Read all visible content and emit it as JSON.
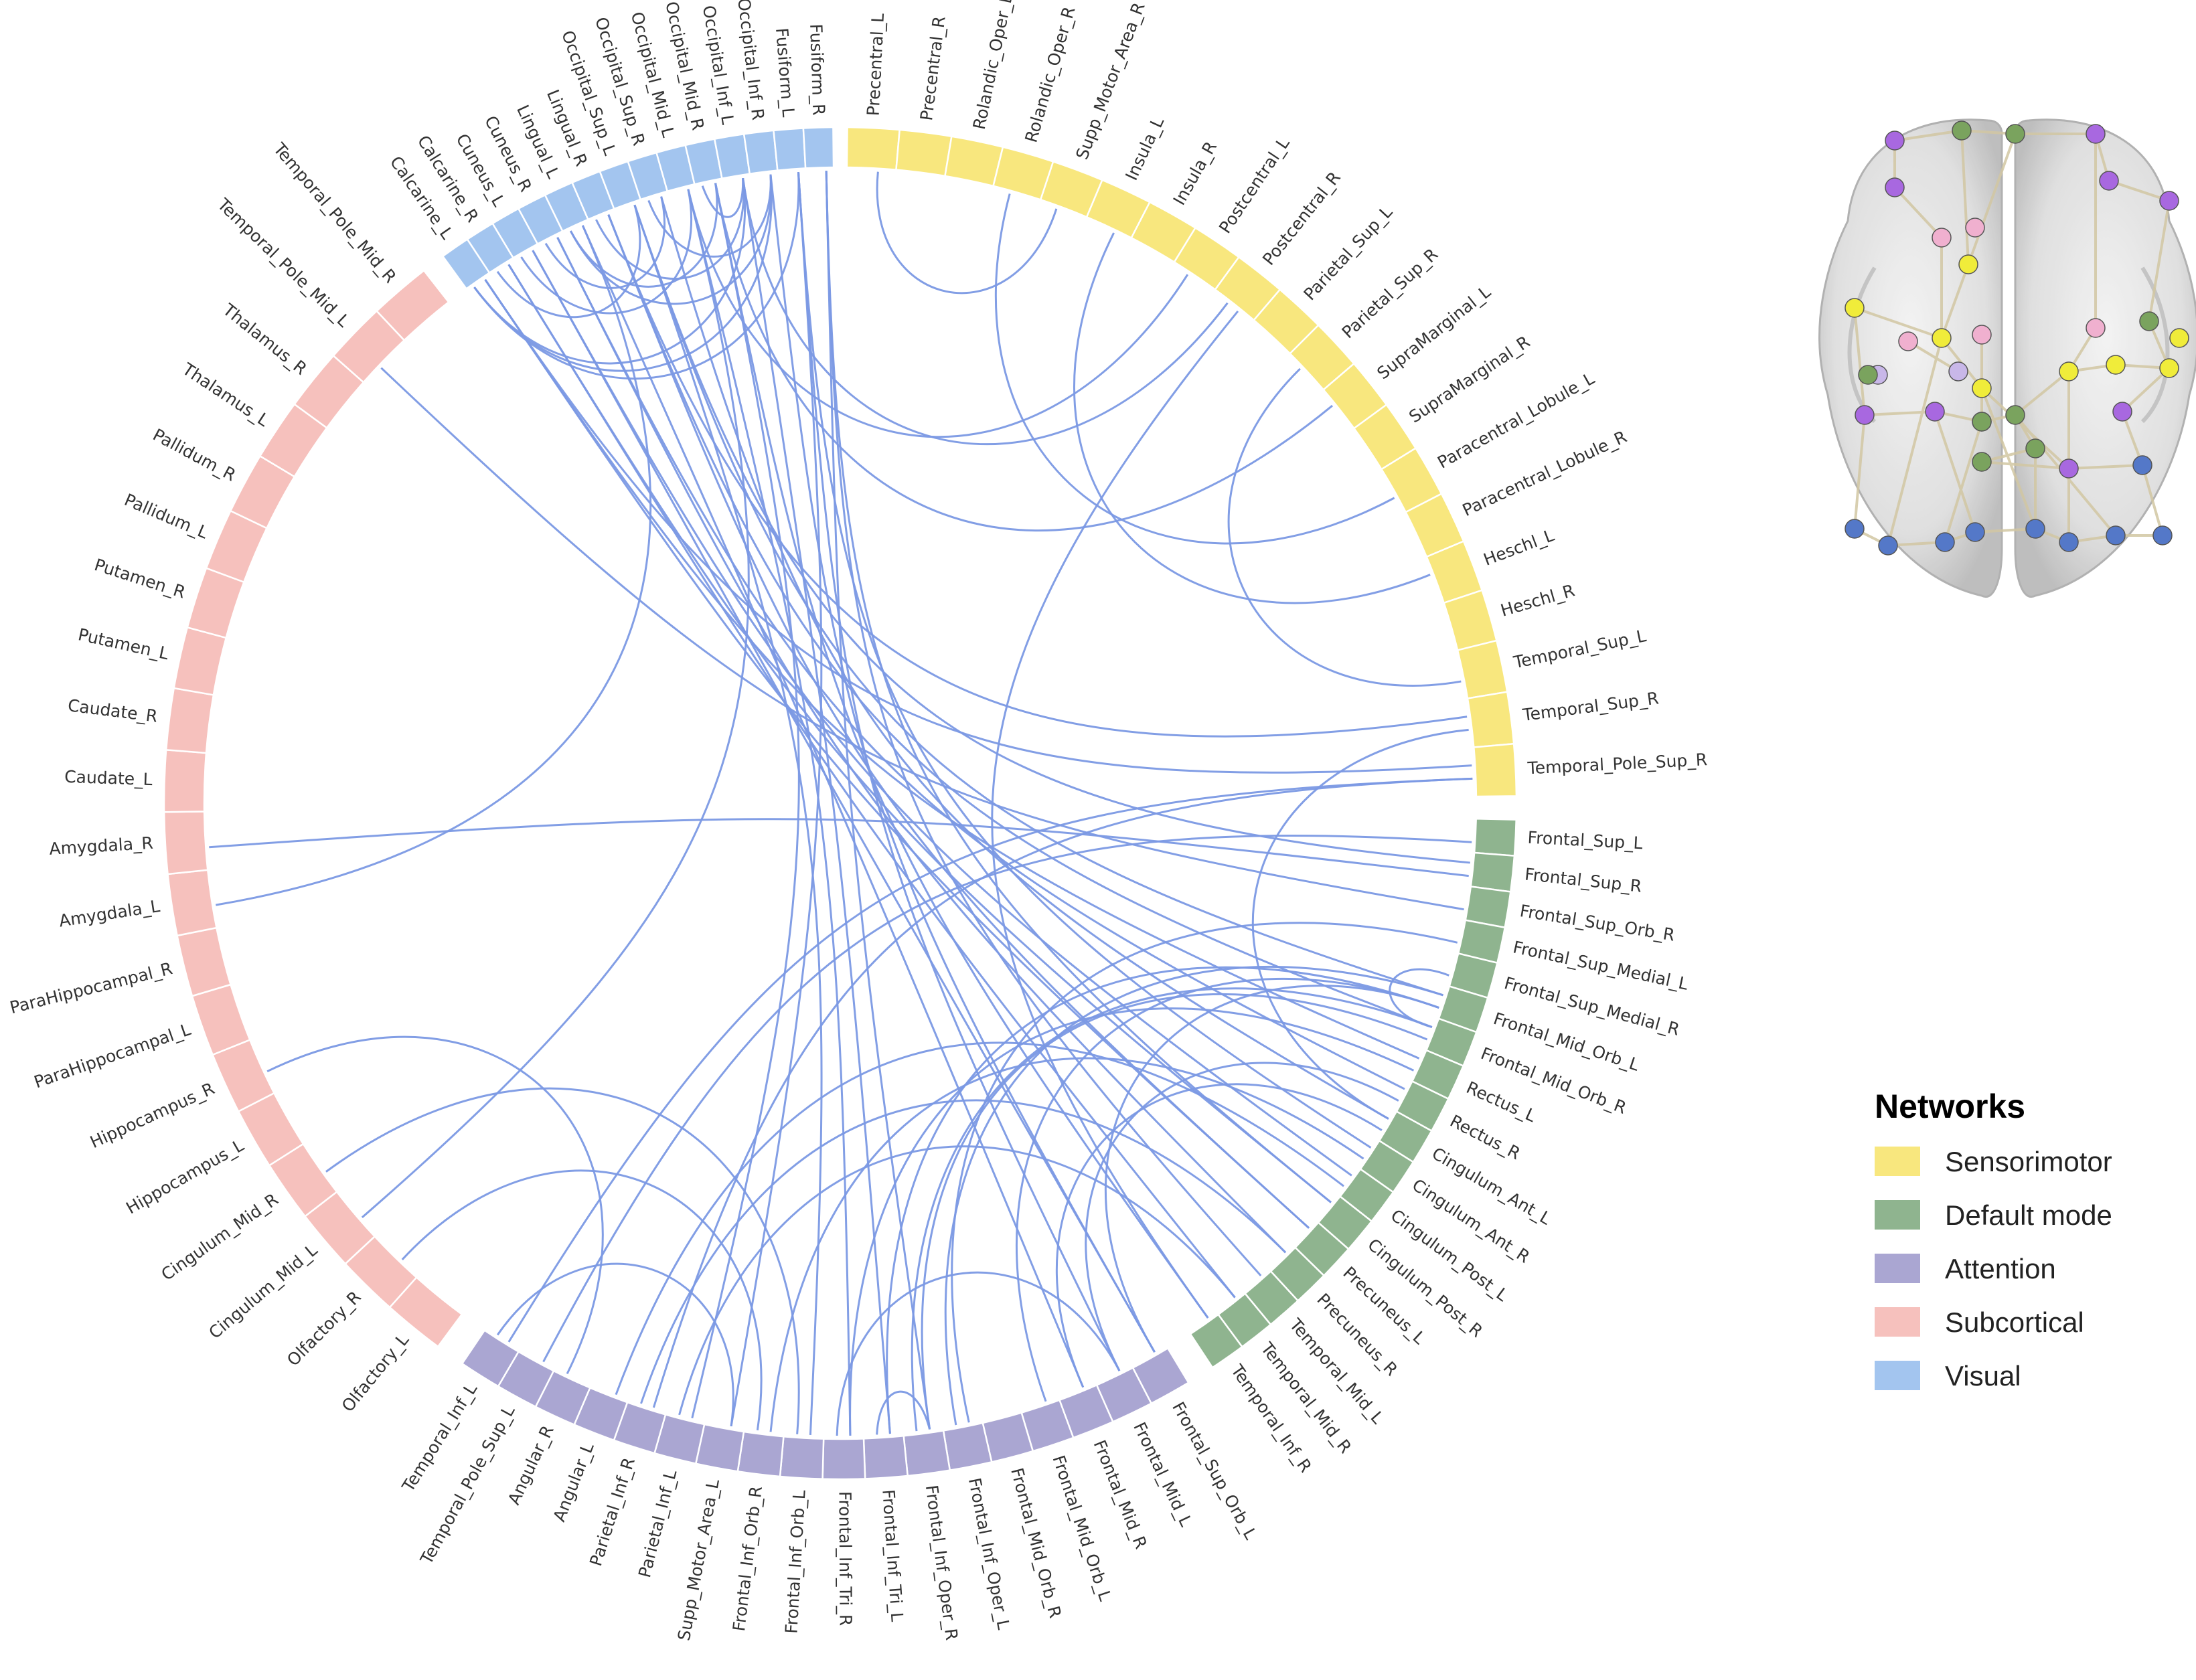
{
  "figure": "chord-diagram",
  "legend": {
    "title": "Networks",
    "items": [
      {
        "name": "Sensorimotor",
        "color": "#f8e77e"
      },
      {
        "name": "Default mode",
        "color": "#8fb48f"
      },
      {
        "name": "Attention",
        "color": "#aaa6d2"
      },
      {
        "name": "Subcortical",
        "color": "#f6c1bd"
      },
      {
        "name": "Visual",
        "color": "#a3c5ef"
      }
    ]
  },
  "groups": [
    {
      "network": "Sensorimotor",
      "color": "#f8e77e",
      "regions": [
        "Precentral_L",
        "Precentral_R",
        "Rolandic_Oper_L",
        "Rolandic_Oper_R",
        "Supp_Motor_Area_R",
        "Insula_L",
        "Insula_R",
        "Postcentral_L",
        "Postcentral_R",
        "Parietal_Sup_L",
        "Parietal_Sup_R",
        "SupraMarginal_L",
        "SupraMarginal_R",
        "Paracentral_Lobule_L",
        "Paracentral_Lobule_R",
        "Heschl_L",
        "Heschl_R",
        "Temporal_Sup_L",
        "Temporal_Sup_R",
        "Temporal_Pole_Sup_R"
      ]
    },
    {
      "network": "Default mode",
      "color": "#8fb48f",
      "regions": [
        "Frontal_Sup_L",
        "Frontal_Sup_R",
        "Frontal_Sup_Orb_R",
        "Frontal_Sup_Medial_L",
        "Frontal_Sup_Medial_R",
        "Frontal_Mid_Orb_L",
        "Frontal_Mid_Orb_R",
        "Rectus_L",
        "Rectus_R",
        "Cingulum_Ant_L",
        "Cingulum_Ant_R",
        "Cingulum_Post_L",
        "Cingulum_Post_R",
        "Precuneus_L",
        "Precuneus_R",
        "Temporal_Mid_L",
        "Temporal_Mid_R",
        "Temporal_Inf_R"
      ]
    },
    {
      "network": "Attention",
      "color": "#aaa6d2",
      "regions": [
        "Frontal_Sup_Orb_L",
        "Frontal_Mid_L",
        "Frontal_Mid_R",
        "Frontal_Mid_Orb_L",
        "Frontal_Mid_Orb_R",
        "Frontal_Inf_Oper_L",
        "Frontal_Inf_Oper_R",
        "Frontal_Inf_Tri_L",
        "Frontal_Inf_Tri_R",
        "Frontal_Inf_Orb_L",
        "Frontal_Inf_Orb_R",
        "Supp_Motor_Area_L",
        "Parietal_Inf_L",
        "Parietal_Inf_R",
        "Angular_L",
        "Angular_R",
        "Temporal_Pole_Sup_L",
        "Temporal_Inf_L"
      ]
    },
    {
      "network": "Subcortical",
      "color": "#f6c1bd",
      "regions": [
        "Olfactory_L",
        "Olfactory_R",
        "Cingulum_Mid_L",
        "Cingulum_Mid_R",
        "Hippocampus_L",
        "Hippocampus_R",
        "ParaHippocampal_L",
        "ParaHippocampal_R",
        "Amygdala_L",
        "Amygdala_R",
        "Caudate_L",
        "Caudate_R",
        "Putamen_L",
        "Putamen_R",
        "Pallidum_L",
        "Pallidum_R",
        "Thalamus_L",
        "Thalamus_R",
        "Temporal_Pole_Mid_L",
        "Temporal_Pole_Mid_R"
      ]
    },
    {
      "network": "Visual",
      "color": "#a3c5ef",
      "regions": [
        "Calcarine_L",
        "Calcarine_R",
        "Cuneus_L",
        "Cuneus_R",
        "Lingual_L",
        "Lingual_R",
        "Occipital_Sup_L",
        "Occipital_Sup_R",
        "Occipital_Mid_L",
        "Occipital_Mid_R",
        "Occipital_Inf_L",
        "Occipital_Inf_R",
        "Fusiform_L",
        "Fusiform_R"
      ]
    }
  ],
  "links": [
    [
      "Fusiform_R",
      "Frontal_Inf_Oper_R"
    ],
    [
      "Fusiform_R",
      "Cingulum_Post_R"
    ],
    [
      "Fusiform_R",
      "Temporal_Mid_L"
    ],
    [
      "Fusiform_L",
      "Frontal_Mid_L"
    ],
    [
      "Fusiform_L",
      "Cingulum_Ant_R"
    ],
    [
      "Fusiform_L",
      "Supp_Motor_Area_L"
    ],
    [
      "Fusiform_L",
      "Calcarine_L"
    ],
    [
      "Occipital_Inf_R",
      "Occipital_Sup_R"
    ],
    [
      "Occipital_Inf_R",
      "Lingual_L"
    ],
    [
      "Occipital_Inf_R",
      "Calcarine_L"
    ],
    [
      "Occipital_Inf_R",
      "Frontal_Sup_Orb_L"
    ],
    [
      "Occipital_Inf_L",
      "Occipital_Mid_R"
    ],
    [
      "Occipital_Inf_L",
      "Lingual_R"
    ],
    [
      "Occipital_Inf_L",
      "Frontal_Inf_Tri_L"
    ],
    [
      "Occipital_Inf_L",
      "Postcentral_R"
    ],
    [
      "Occipital_Inf_L",
      "Calcarine_L"
    ],
    [
      "Occipital_Mid_R",
      "Temporal_Inf_R"
    ],
    [
      "Occipital_Mid_R",
      "Parietal_Inf_L"
    ],
    [
      "Occipital_Mid_R",
      "Lingual_L"
    ],
    [
      "Occipital_Mid_R",
      "SupraMarginal_L"
    ],
    [
      "Occipital_Mid_L",
      "Frontal_Inf_Tri_R"
    ],
    [
      "Occipital_Mid_L",
      "Cingulum_Mid_L"
    ],
    [
      "Occipital_Mid_L",
      "Cuneus_L"
    ],
    [
      "Occipital_Mid_L",
      "Postcentral_L"
    ],
    [
      "Occipital_Sup_R",
      "Cingulum_Ant_L"
    ],
    [
      "Occipital_Sup_R",
      "Cuneus_R"
    ],
    [
      "Occipital_Sup_L",
      "Frontal_Sup_R"
    ],
    [
      "Occipital_Sup_L",
      "Frontal_Inf_Orb_L"
    ],
    [
      "Occipital_Sup_L",
      "Calcarine_R"
    ],
    [
      "Occipital_Sup_L",
      "Frontal_Mid_Orb_L"
    ],
    [
      "Lingual_R",
      "Precuneus_L"
    ],
    [
      "Lingual_R",
      "Frontal_Mid_Orb_R"
    ],
    [
      "Lingual_R",
      "Temporal_Sup_R"
    ],
    [
      "Lingual_L",
      "Amygdala_L"
    ],
    [
      "Lingual_L",
      "Frontal_Mid_R"
    ],
    [
      "Cuneus_R",
      "Precuneus_R"
    ],
    [
      "Cuneus_R",
      "Rectus_R"
    ],
    [
      "Cuneus_L",
      "Cingulum_Post_L"
    ],
    [
      "Cuneus_L",
      "Frontal_Sup_Orb_L"
    ],
    [
      "Calcarine_R",
      "Cingulum_Post_R"
    ],
    [
      "Calcarine_R",
      "Temporal_Mid_R"
    ],
    [
      "Calcarine_L",
      "Precuneus_L"
    ],
    [
      "Calcarine_L",
      "Rectus_L"
    ],
    [
      "Calcarine_L",
      "Temporal_Pole_Sup_R"
    ],
    [
      "Precentral_L",
      "Supp_Motor_Area_R"
    ],
    [
      "Insula_L",
      "Heschl_L"
    ],
    [
      "Postcentral_R",
      "Temporal_Inf_R"
    ],
    [
      "Paracentral_Lobule_L",
      "Rolandic_Oper_R"
    ],
    [
      "Temporal_Pole_Sup_R",
      "Parietal_Inf_R"
    ],
    [
      "Temporal_Pole_Sup_R",
      "Temporal_Inf_L"
    ],
    [
      "Temporal_Sup_R",
      "Cingulum_Ant_L"
    ],
    [
      "Temporal_Sup_L",
      "Parietal_Sup_R"
    ],
    [
      "Frontal_Sup_L",
      "Temporal_Pole_Sup_L"
    ],
    [
      "Frontal_Sup_Medial_L",
      "Frontal_Inf_Oper_L"
    ],
    [
      "Frontal_Sup_Medial_R",
      "Frontal_Mid_Orb_R"
    ],
    [
      "Frontal_Mid_Orb_L",
      "Frontal_Mid_Orb_L"
    ],
    [
      "Frontal_Mid_Orb_L",
      "Frontal_Inf_Tri_L"
    ],
    [
      "Frontal_Mid_Orb_R",
      "Frontal_Inf_Oper_R"
    ],
    [
      "Rectus_L",
      "Frontal_Inf_Tri_R"
    ],
    [
      "Rectus_R",
      "Frontal_Mid_L"
    ],
    [
      "Cingulum_Ant_L",
      "Frontal_Mid_R"
    ],
    [
      "Cingulum_Ant_R",
      "Frontal_Inf_Orb_R"
    ],
    [
      "Cingulum_Post_L",
      "Angular_L"
    ],
    [
      "Frontal_Sup_Orb_R",
      "Temporal_Pole_Mid_L"
    ],
    [
      "Frontal_Sup_R",
      "Amygdala_R"
    ],
    [
      "Frontal_Inf_Oper_R",
      "Frontal_Mid_Orb_R"
    ],
    [
      "Frontal_Inf_Oper_L",
      "Frontal_Mid_Orb_L"
    ],
    [
      "Frontal_Inf_Tri_R",
      "Frontal_Mid_L"
    ],
    [
      "Frontal_Inf_Tri_L",
      "Frontal_Inf_Oper_R"
    ],
    [
      "Frontal_Inf_Orb_R",
      "Olfactory_R"
    ],
    [
      "Frontal_Inf_Orb_L",
      "Cingulum_Mid_R"
    ],
    [
      "Angular_R",
      "Hippocampus_R"
    ],
    [
      "Temporal_Inf_L",
      "Supp_Motor_Area_L"
    ],
    [
      "Parietal_Inf_L",
      "Temporal_Mid_R"
    ],
    [
      "Parietal_Inf_R",
      "Precuneus_R"
    ],
    [
      "Frontal_Mid_Orb_L",
      "Frontal_Sup_Orb_L"
    ]
  ]
}
